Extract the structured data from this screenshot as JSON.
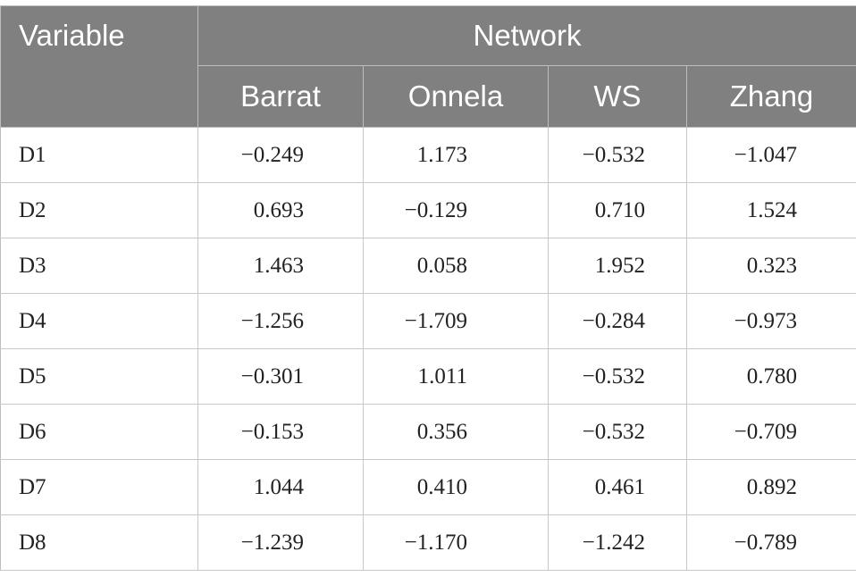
{
  "table": {
    "header": {
      "variable_label": "Variable",
      "group_label": "Network",
      "columns": [
        "Barrat",
        "Onnela",
        "WS",
        "Zhang"
      ]
    },
    "rows": [
      {
        "label": "D1",
        "values": [
          "−0.249",
          "1.173",
          "−0.532",
          "−1.047"
        ]
      },
      {
        "label": "D2",
        "values": [
          "0.693",
          "−0.129",
          "0.710",
          "1.524"
        ]
      },
      {
        "label": "D3",
        "values": [
          "1.463",
          "0.058",
          "1.952",
          "0.323"
        ]
      },
      {
        "label": "D4",
        "values": [
          "−1.256",
          "−1.709",
          "−0.284",
          "−0.973"
        ]
      },
      {
        "label": "D5",
        "values": [
          "−0.301",
          "1.011",
          "−0.532",
          "0.780"
        ]
      },
      {
        "label": "D6",
        "values": [
          "−0.153",
          "0.356",
          "−0.532",
          "−0.709"
        ]
      },
      {
        "label": "D7",
        "values": [
          "1.044",
          "0.410",
          "0.461",
          "0.892"
        ]
      },
      {
        "label": "D8",
        "values": [
          "−1.239",
          "−1.170",
          "−1.242",
          "−0.789"
        ]
      }
    ]
  },
  "colors": {
    "header_bg": "#808080",
    "header_text": "#ffffff",
    "grid_line": "#c8c8c8"
  }
}
